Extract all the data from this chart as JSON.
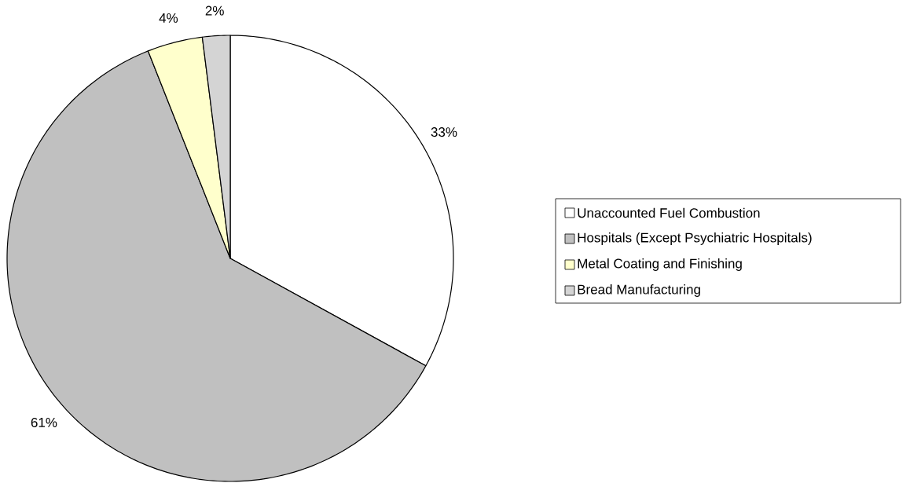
{
  "chart_data": {
    "type": "pie",
    "categories": [
      "Unaccounted Fuel Combustion",
      "Hospitals (Except Psychiatric Hospitals)",
      "Metal Coating and Finishing",
      "Bread Manufacturing"
    ],
    "values": [
      33,
      61,
      4,
      2
    ],
    "value_labels": [
      "33%",
      "61%",
      "4%",
      "2%"
    ],
    "colors": [
      "#ffffff",
      "#c0c0c0",
      "#ffffcc",
      "#d4d4d4"
    ],
    "legend": "right"
  }
}
